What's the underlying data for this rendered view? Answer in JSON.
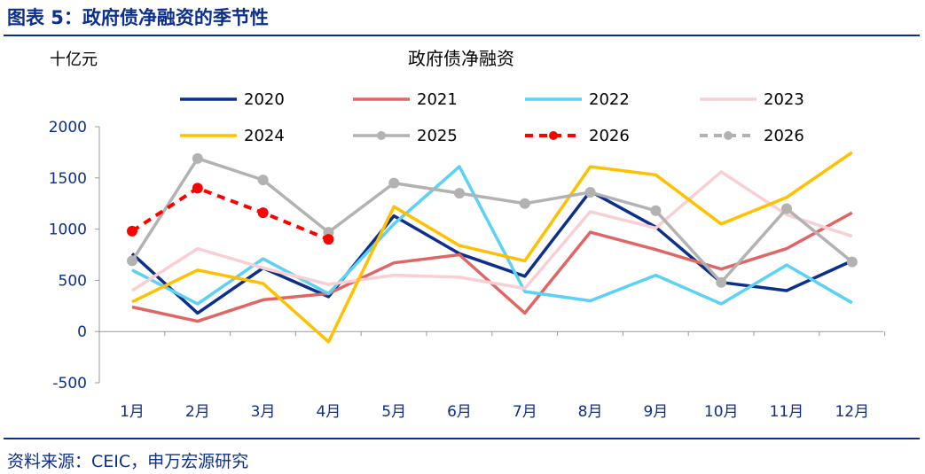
{
  "figure_title": "图表 5：政府债净融资的季节性",
  "source_note": "资料来源：CEIC，申万宏源研究",
  "chart_data": {
    "type": "line",
    "title": "政府债净融资",
    "unit_label": "十亿元",
    "categories": [
      "1月",
      "2月",
      "3月",
      "4月",
      "5月",
      "6月",
      "7月",
      "8月",
      "9月",
      "10月",
      "11月",
      "12月"
    ],
    "ylim": [
      -500,
      2000
    ],
    "yticks": [
      "2000",
      "1500",
      "1000",
      "500",
      "0",
      "-500"
    ],
    "grid": false,
    "legend_position": "top",
    "series": [
      {
        "name": "2020",
        "color": "#0d2f8c",
        "style": "solid",
        "marker": false,
        "values": [
          760,
          180,
          620,
          340,
          1130,
          760,
          540,
          1370,
          1020,
          480,
          400,
          690
        ]
      },
      {
        "name": "2021",
        "color": "#e06666",
        "style": "solid",
        "marker": false,
        "values": [
          240,
          100,
          310,
          370,
          670,
          750,
          180,
          970,
          800,
          610,
          810,
          1160
        ]
      },
      {
        "name": "2022",
        "color": "#5bd1f5",
        "style": "solid",
        "marker": false,
        "values": [
          600,
          270,
          710,
          370,
          1050,
          1610,
          390,
          300,
          550,
          270,
          650,
          280
        ]
      },
      {
        "name": "2023",
        "color": "#f8cfd2",
        "style": "solid",
        "marker": false,
        "values": [
          400,
          810,
          620,
          460,
          550,
          530,
          420,
          1170,
          1010,
          1560,
          1140,
          930
        ]
      },
      {
        "name": "2024",
        "color": "#ffc000",
        "style": "solid",
        "marker": false,
        "values": [
          290,
          600,
          470,
          -100,
          1220,
          840,
          690,
          1610,
          1530,
          1050,
          1310,
          1750
        ]
      },
      {
        "name": "2025",
        "color": "#b2b2b2",
        "style": "solid",
        "marker": true,
        "values": [
          690,
          1690,
          1480,
          970,
          1450,
          1350,
          1250,
          1360,
          1180,
          480,
          1200,
          680
        ]
      },
      {
        "name": "2026",
        "color": "#ff0000",
        "style": "dashed",
        "marker": true,
        "values": [
          980,
          1400,
          1160,
          900,
          null,
          null,
          null,
          null,
          null,
          null,
          null,
          null
        ]
      },
      {
        "name": "2026",
        "color": "#b2b2b2",
        "style": "dashed",
        "marker": true,
        "values": [
          null,
          null,
          null,
          null,
          null,
          null,
          null,
          null,
          null,
          null,
          null,
          null
        ]
      }
    ]
  }
}
